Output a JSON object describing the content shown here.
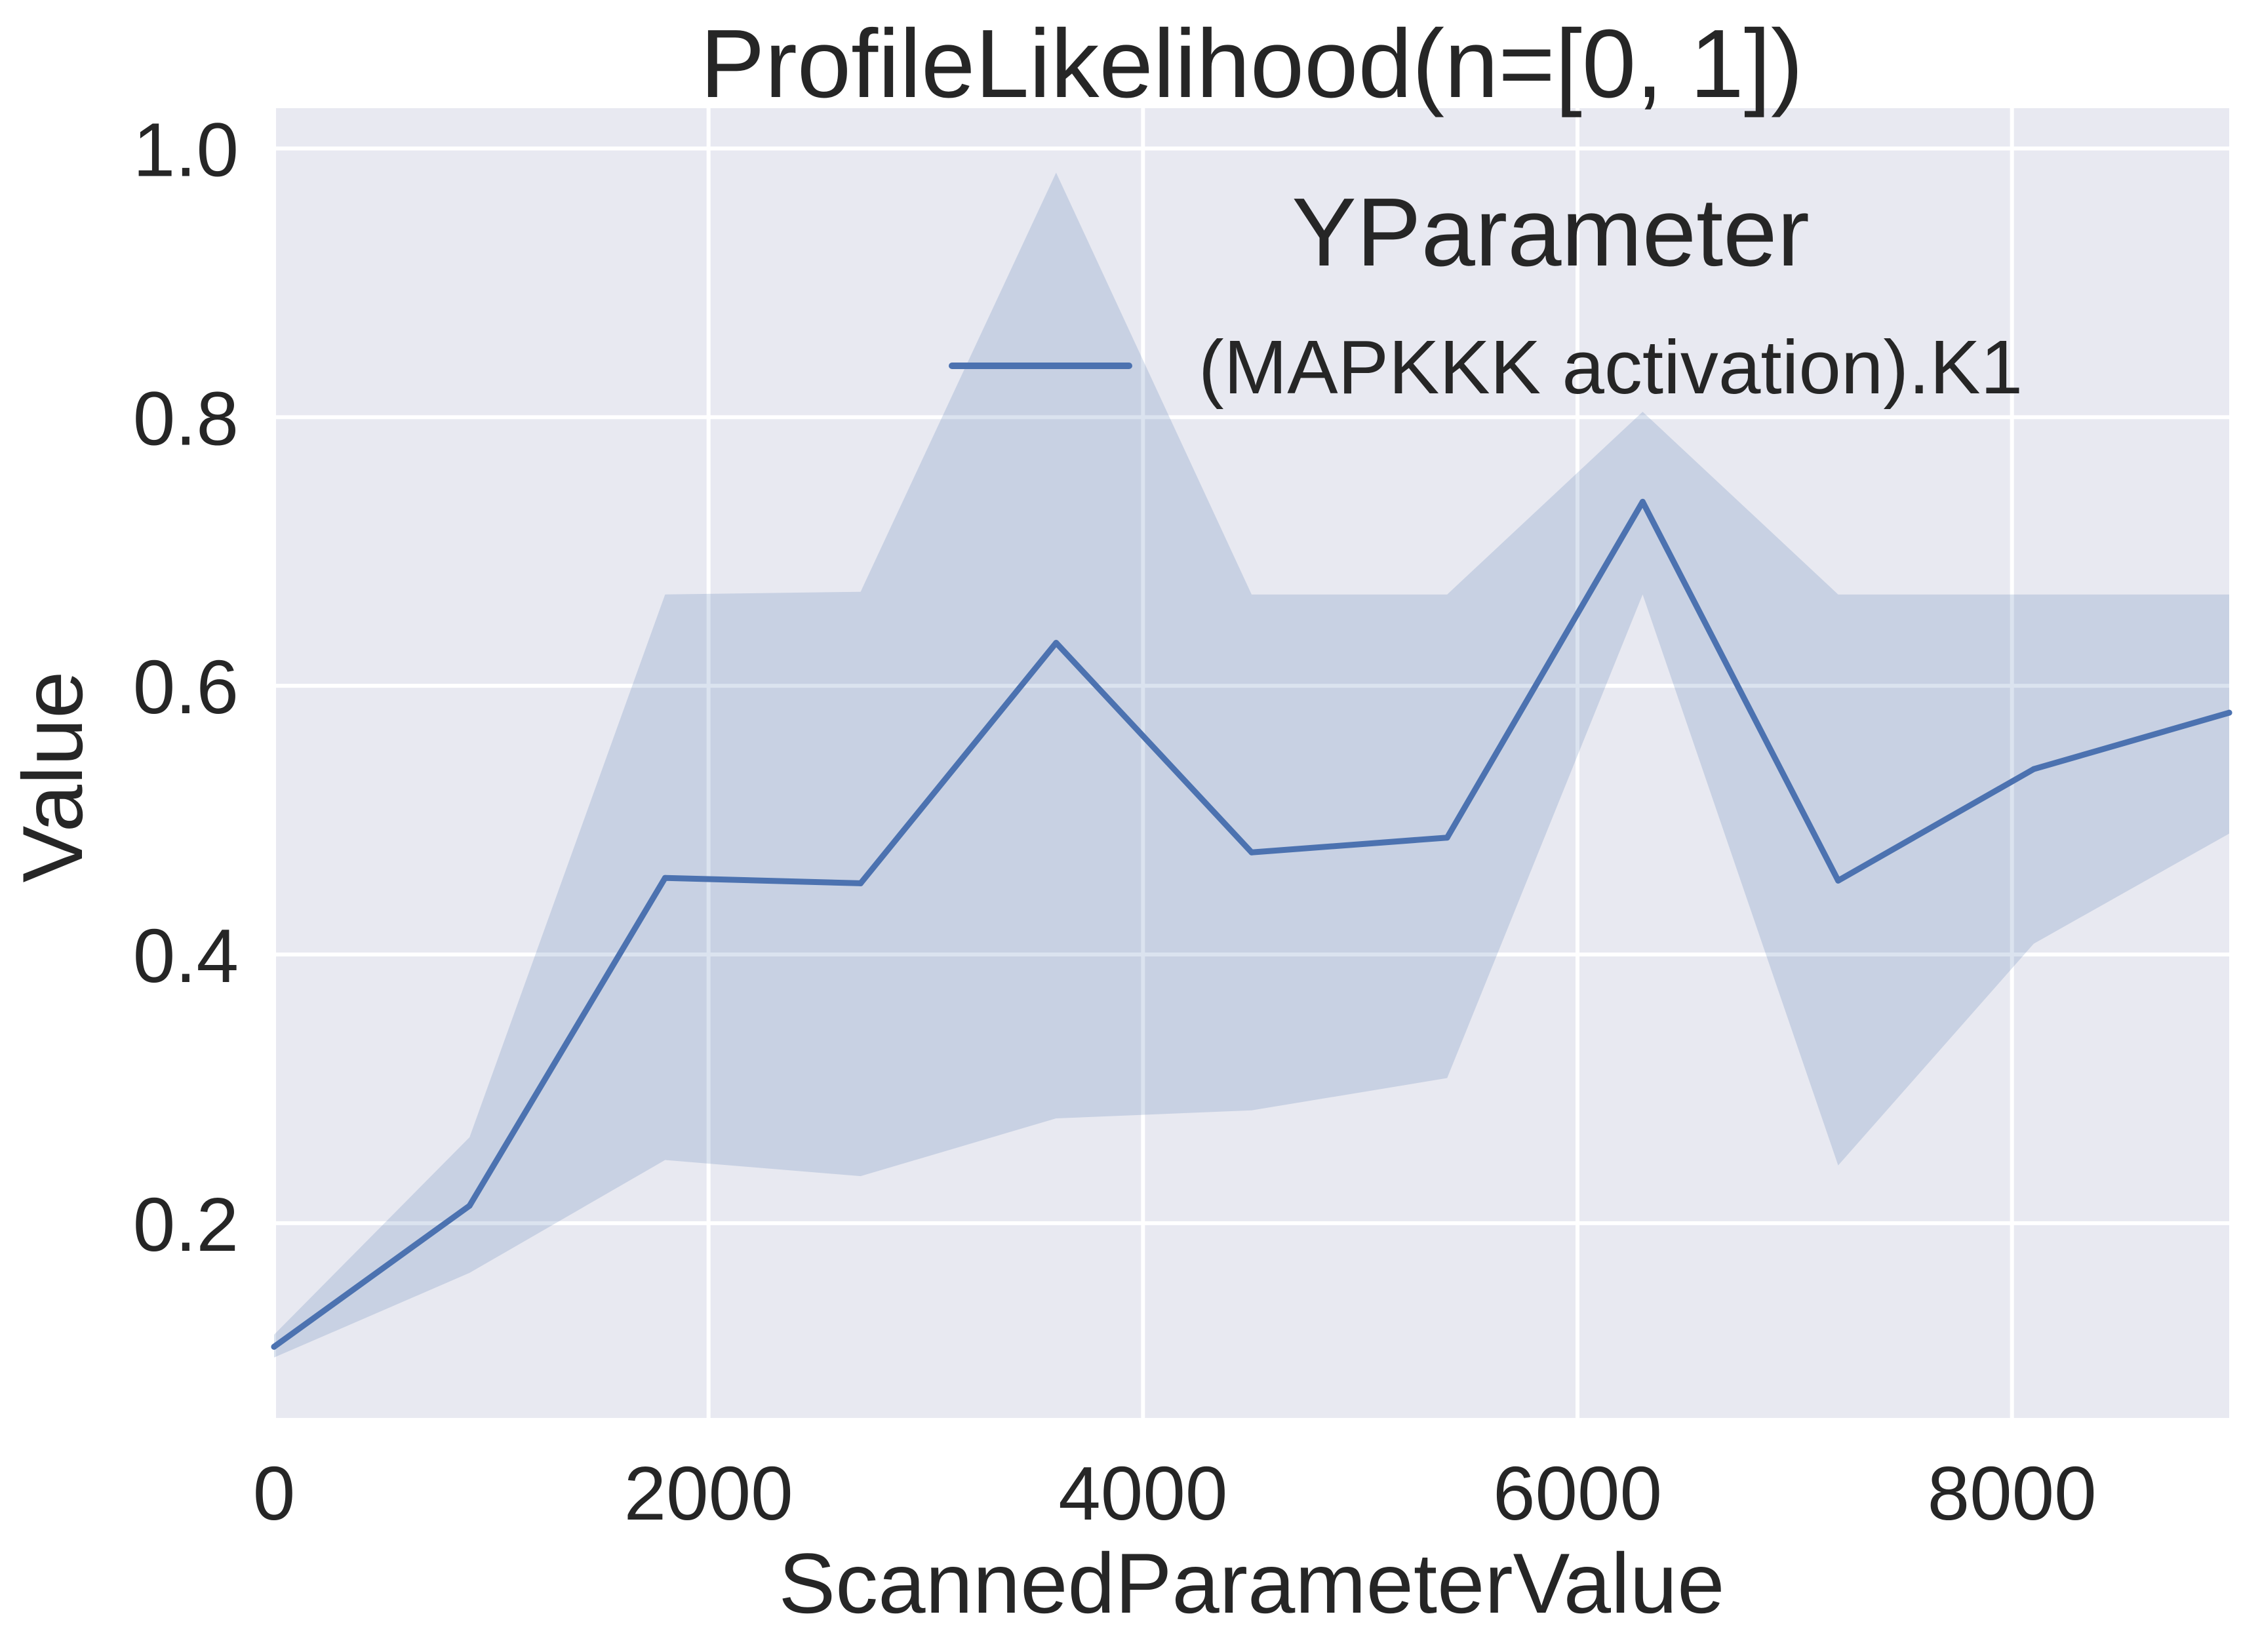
{
  "colors": {
    "plot_background": "#e8e9f1",
    "grid": "#ffffff",
    "series": "#4c72b0",
    "band": "#4c72b0",
    "text": "#262626"
  },
  "chart_data": {
    "type": "line",
    "title": "ProfileLikelihood(n=[0, 1])",
    "xlabel": "ScannedParameterValue",
    "ylabel": "Value",
    "xlim": [
      0,
      9000
    ],
    "ylim": [
      0.055,
      1.03
    ],
    "xticks": [
      0,
      2000,
      4000,
      6000,
      8000
    ],
    "xtick_labels": [
      "0",
      "2000",
      "4000",
      "6000",
      "8000"
    ],
    "yticks": [
      0.2,
      0.4,
      0.6,
      0.8,
      1.0
    ],
    "ytick_labels": [
      "0.2",
      "0.4",
      "0.6",
      "0.8",
      "1.0"
    ],
    "grid": true,
    "legend": {
      "title": "YParameter",
      "placement": "top-right",
      "entries": [
        "(MAPKKK activation).K1"
      ]
    },
    "series": [
      {
        "name": "(MAPKKK activation).K1",
        "x": [
          0,
          900,
          1800,
          2700,
          3600,
          4500,
          5400,
          6300,
          7200,
          8100,
          9000
        ],
        "y": [
          0.108,
          0.213,
          0.457,
          0.453,
          0.632,
          0.476,
          0.487,
          0.737,
          0.455,
          0.538,
          0.58
        ],
        "band_upper": [
          0.117,
          0.264,
          0.668,
          0.67,
          0.982,
          0.668,
          0.668,
          0.804,
          0.668,
          0.668,
          0.668
        ],
        "band_lower": [
          0.1,
          0.163,
          0.247,
          0.235,
          0.278,
          0.284,
          0.308,
          0.668,
          0.243,
          0.408,
          0.49
        ]
      }
    ]
  }
}
